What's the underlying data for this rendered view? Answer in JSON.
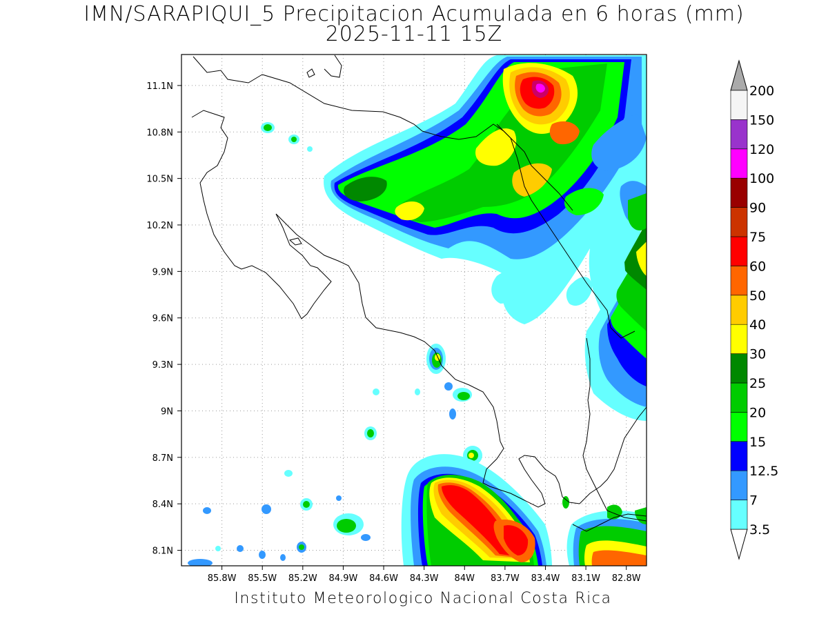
{
  "title_line1": "IMN/SARAPIQUI_5 Precipitacion Acumulada en 6 horas (mm)",
  "title_line2": "2025-11-11 15Z",
  "credit": "Instituto Meteorologico Nacional Costa Rica",
  "map": {
    "lon_range": [
      -86.1,
      -82.65
    ],
    "lat_range": [
      8.0,
      11.3
    ],
    "x_ticks": [
      {
        "lon": -85.8,
        "label": "85.8W"
      },
      {
        "lon": -85.5,
        "label": "85.5W"
      },
      {
        "lon": -85.2,
        "label": "85.2W"
      },
      {
        "lon": -84.9,
        "label": "84.9W"
      },
      {
        "lon": -84.6,
        "label": "84.6W"
      },
      {
        "lon": -84.3,
        "label": "84.3W"
      },
      {
        "lon": -84.0,
        "label": "84W"
      },
      {
        "lon": -83.7,
        "label": "83.7W"
      },
      {
        "lon": -83.4,
        "label": "83.4W"
      },
      {
        "lon": -83.1,
        "label": "83.1W"
      },
      {
        "lon": -82.8,
        "label": "82.8W"
      }
    ],
    "y_ticks": [
      {
        "lat": 11.1,
        "label": "11.1N"
      },
      {
        "lat": 10.8,
        "label": "10.8N"
      },
      {
        "lat": 10.5,
        "label": "10.5N"
      },
      {
        "lat": 10.2,
        "label": "10.2N"
      },
      {
        "lat": 9.9,
        "label": "9.9N"
      },
      {
        "lat": 9.6,
        "label": "9.6N"
      },
      {
        "lat": 9.3,
        "label": "9.3N"
      },
      {
        "lat": 9.0,
        "label": "9N"
      },
      {
        "lat": 8.7,
        "label": "8.7N"
      },
      {
        "lat": 8.4,
        "label": "8.4N"
      },
      {
        "lat": 8.1,
        "label": "8.1N"
      }
    ],
    "grid": true
  },
  "colorbar": {
    "levels": [
      {
        "label": "3.5",
        "color": "#66ffff"
      },
      {
        "label": "7",
        "color": "#3399ff"
      },
      {
        "label": "12.5",
        "color": "#0000ff"
      },
      {
        "label": "15",
        "color": "#00ff00"
      },
      {
        "label": "20",
        "color": "#00cc00"
      },
      {
        "label": "25",
        "color": "#008800"
      },
      {
        "label": "30",
        "color": "#ffff00"
      },
      {
        "label": "40",
        "color": "#ffcc00"
      },
      {
        "label": "50",
        "color": "#ff6600"
      },
      {
        "label": "60",
        "color": "#ff0000"
      },
      {
        "label": "75",
        "color": "#cc3300"
      },
      {
        "label": "90",
        "color": "#990000"
      },
      {
        "label": "100",
        "color": "#ff00ff"
      },
      {
        "label": "120",
        "color": "#9933cc"
      },
      {
        "label": "150",
        "color": "#f5f5f5"
      },
      {
        "label": "200",
        "color": "#aaaaaa"
      }
    ]
  }
}
